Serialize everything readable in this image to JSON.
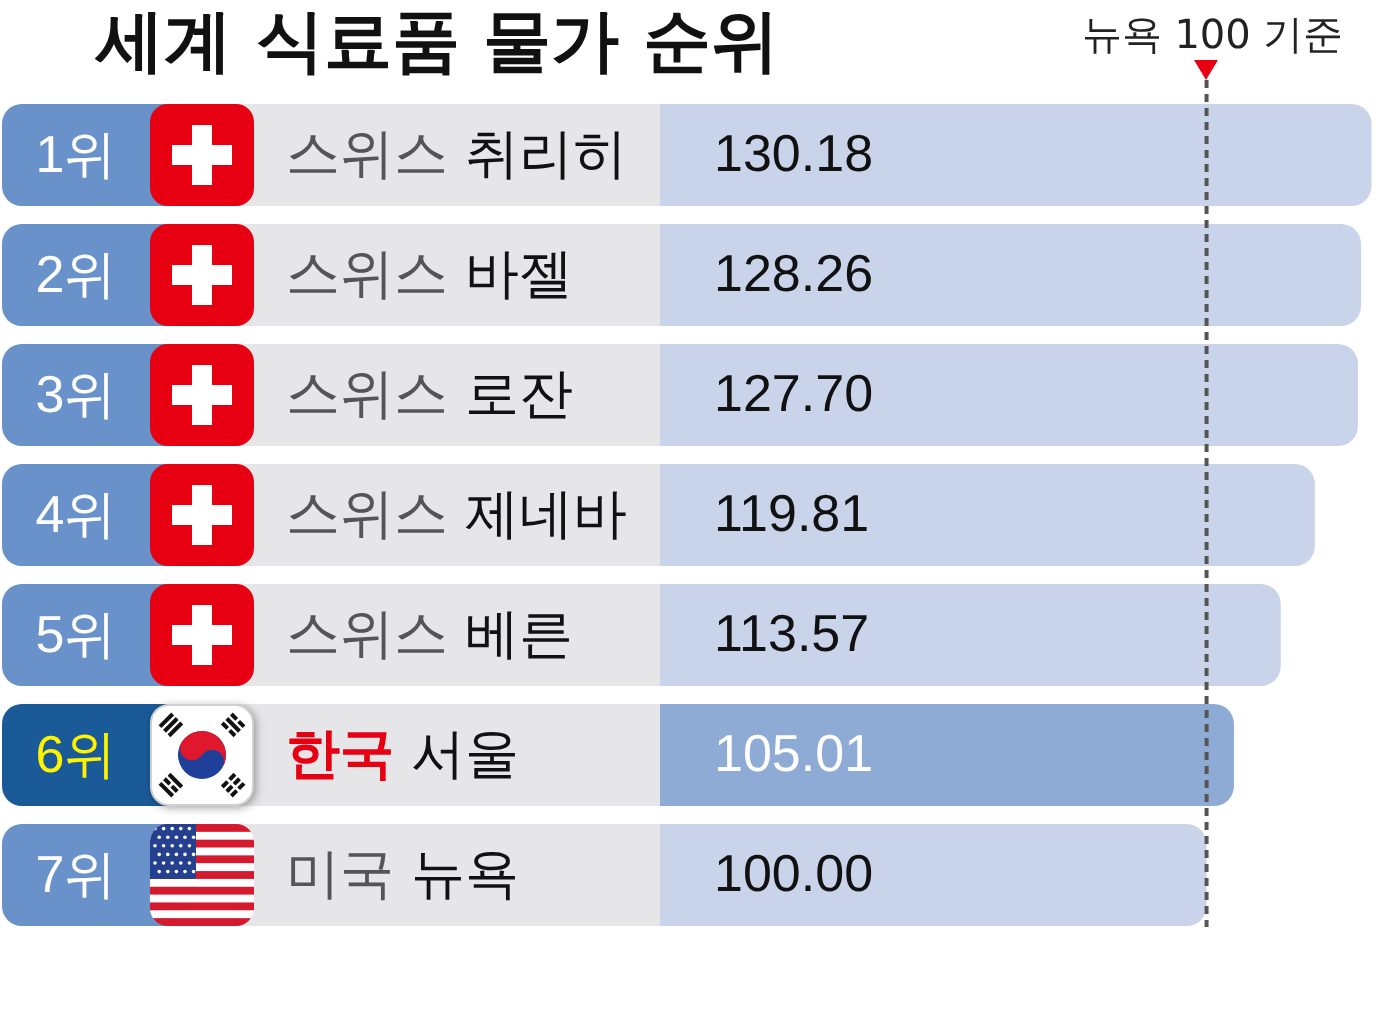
{
  "chart_data": {
    "type": "bar",
    "orientation": "horizontal",
    "title": "세계 식료품 물가 순위",
    "categories": [
      "스위스 취리히",
      "스위스 바젤",
      "스위스 로잔",
      "스위스 제네바",
      "스위스 베른",
      "한국 서울",
      "미국 뉴욕"
    ],
    "values": [
      130.18,
      128.26,
      127.7,
      119.81,
      113.57,
      105.01,
      100.0
    ],
    "value_labels": [
      "130.18",
      "128.26",
      "127.70",
      "119.81",
      "113.57",
      "105.01",
      "100.00"
    ],
    "colors": [
      "#c9d4ea",
      "#c9d4ea",
      "#c9d4ea",
      "#c9d4ea",
      "#c9d4ea",
      "#8eabd6",
      "#c9d4ea"
    ],
    "xlim": [
      0,
      131
    ],
    "tick_labels": "y",
    "ref_lines": [
      {
        "axis": "x",
        "value": 100,
        "label": "뉴욕 100 기준",
        "line_style": "dashed",
        "color": "#555555"
      }
    ],
    "annotations": [
      "1위",
      "2위",
      "3위",
      "4위",
      "5위",
      "6위",
      "7위"
    ]
  }
}
